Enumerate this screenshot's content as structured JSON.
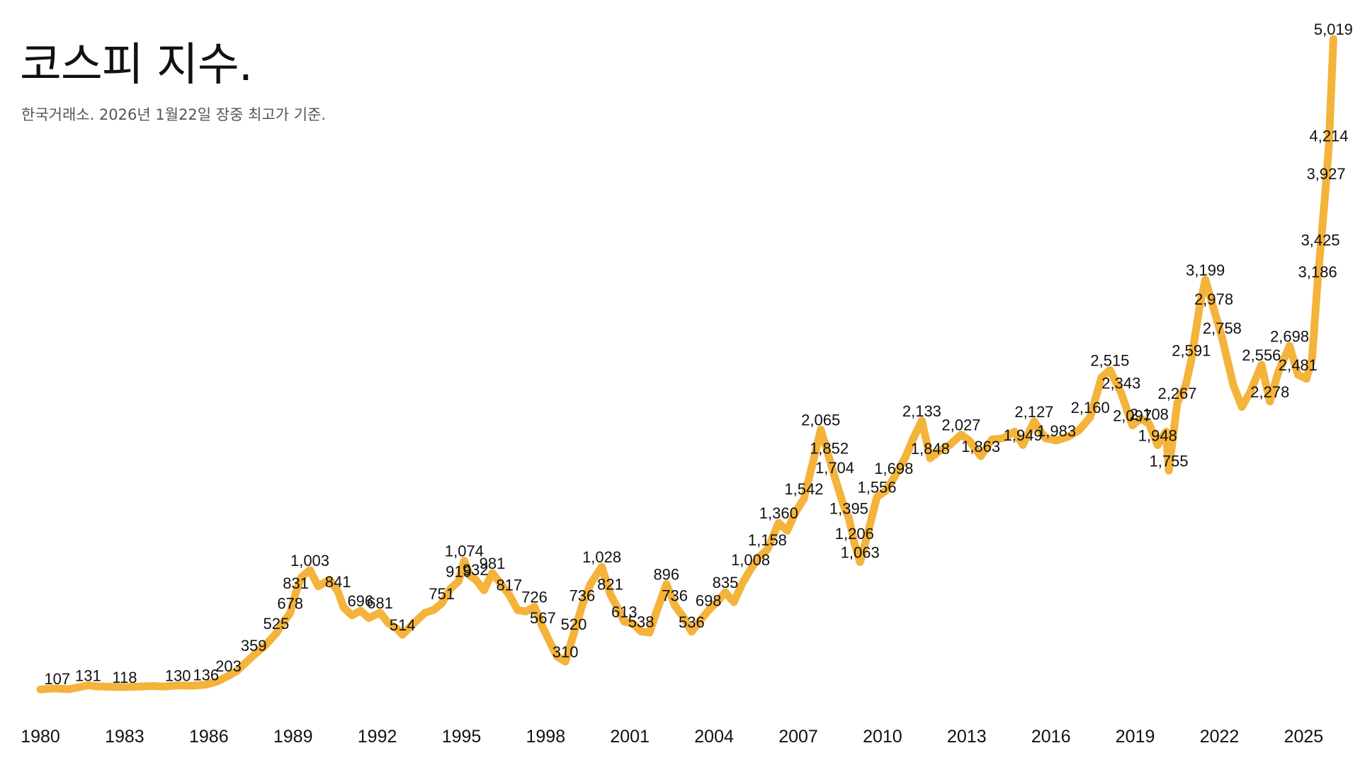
{
  "header": {
    "title": "코스피 지수.",
    "subtitle": "한국거래소. 2026년 1월22일 장중 최고가 기준."
  },
  "colors": {
    "line": "#F4B33A",
    "text": "#111111",
    "subtitle": "#555555"
  },
  "chart_data": {
    "type": "line",
    "title": "코스피 지수.",
    "subtitle": "한국거래소. 2026년 1월22일 장중 최고가 기준.",
    "xlabel": "",
    "ylabel": "",
    "xlim": [
      1980,
      2026
    ],
    "ylim": [
      0,
      5100
    ],
    "grid": false,
    "x_ticks": [
      1980,
      1983,
      1986,
      1989,
      1992,
      1995,
      1998,
      2001,
      2004,
      2007,
      2010,
      2013,
      2016,
      2019,
      2022,
      2025
    ],
    "series": [
      {
        "points": [
          [
            1980.0,
            100
          ],
          [
            1980.3,
            105
          ],
          [
            1980.6,
            107
          ],
          [
            1981.0,
            102
          ],
          [
            1981.4,
            118
          ],
          [
            1981.7,
            131
          ],
          [
            1982.0,
            124
          ],
          [
            1982.5,
            120
          ],
          [
            1983.0,
            118
          ],
          [
            1983.5,
            122
          ],
          [
            1984.0,
            126
          ],
          [
            1984.4,
            122
          ],
          [
            1984.9,
            130
          ],
          [
            1985.4,
            128
          ],
          [
            1985.9,
            136
          ],
          [
            1986.3,
            160
          ],
          [
            1986.7,
            203
          ],
          [
            1987.0,
            240
          ],
          [
            1987.3,
            300
          ],
          [
            1987.6,
            359
          ],
          [
            1988.0,
            430
          ],
          [
            1988.4,
            525
          ],
          [
            1988.7,
            620
          ],
          [
            1988.9,
            678
          ],
          [
            1989.1,
            831
          ],
          [
            1989.3,
            950
          ],
          [
            1989.6,
            1003
          ],
          [
            1989.9,
            880
          ],
          [
            1990.3,
            930
          ],
          [
            1990.6,
            841
          ],
          [
            1990.8,
            720
          ],
          [
            1991.1,
            660
          ],
          [
            1991.4,
            696
          ],
          [
            1991.7,
            640
          ],
          [
            1992.1,
            681
          ],
          [
            1992.4,
            600
          ],
          [
            1992.7,
            560
          ],
          [
            1992.9,
            514
          ],
          [
            1993.3,
            600
          ],
          [
            1993.7,
            680
          ],
          [
            1994.0,
            700
          ],
          [
            1994.3,
            751
          ],
          [
            1994.6,
            860
          ],
          [
            1994.9,
            919
          ],
          [
            1995.1,
            1074
          ],
          [
            1995.3,
            960
          ],
          [
            1995.5,
            932
          ],
          [
            1995.8,
            850
          ],
          [
            1996.1,
            981
          ],
          [
            1996.4,
            900
          ],
          [
            1996.7,
            817
          ],
          [
            1997.0,
            700
          ],
          [
            1997.3,
            690
          ],
          [
            1997.6,
            726
          ],
          [
            1997.9,
            567
          ],
          [
            1998.1,
            480
          ],
          [
            1998.4,
            350
          ],
          [
            1998.7,
            310
          ],
          [
            1999.0,
            520
          ],
          [
            1999.3,
            736
          ],
          [
            1999.6,
            900
          ],
          [
            2000.0,
            1028
          ],
          [
            2000.3,
            821
          ],
          [
            2000.6,
            700
          ],
          [
            2000.8,
            613
          ],
          [
            2001.1,
            600
          ],
          [
            2001.4,
            538
          ],
          [
            2001.7,
            530
          ],
          [
            2002.0,
            720
          ],
          [
            2002.3,
            896
          ],
          [
            2002.6,
            736
          ],
          [
            2002.9,
            650
          ],
          [
            2003.2,
            536
          ],
          [
            2003.5,
            620
          ],
          [
            2003.8,
            698
          ],
          [
            2004.1,
            760
          ],
          [
            2004.4,
            835
          ],
          [
            2004.7,
            760
          ],
          [
            2005.0,
            900
          ],
          [
            2005.3,
            1008
          ],
          [
            2005.6,
            1100
          ],
          [
            2005.9,
            1158
          ],
          [
            2006.3,
            1360
          ],
          [
            2006.6,
            1300
          ],
          [
            2006.9,
            1440
          ],
          [
            2007.2,
            1542
          ],
          [
            2007.5,
            1800
          ],
          [
            2007.8,
            2065
          ],
          [
            2008.1,
            1852
          ],
          [
            2008.3,
            1704
          ],
          [
            2008.6,
            1500
          ],
          [
            2008.8,
            1395
          ],
          [
            2009.0,
            1206
          ],
          [
            2009.2,
            1063
          ],
          [
            2009.5,
            1300
          ],
          [
            2009.8,
            1556
          ],
          [
            2010.1,
            1600
          ],
          [
            2010.4,
            1698
          ],
          [
            2010.8,
            1850
          ],
          [
            2011.1,
            2000
          ],
          [
            2011.4,
            2133
          ],
          [
            2011.7,
            1848
          ],
          [
            2012.0,
            1900
          ],
          [
            2012.4,
            1950
          ],
          [
            2012.8,
            2027
          ],
          [
            2013.1,
            1980
          ],
          [
            2013.5,
            1863
          ],
          [
            2013.9,
            1990
          ],
          [
            2014.3,
            2000
          ],
          [
            2014.7,
            2050
          ],
          [
            2015.0,
            1949
          ],
          [
            2015.4,
            2127
          ],
          [
            2015.8,
            2000
          ],
          [
            2016.2,
            1983
          ],
          [
            2016.6,
            2010
          ],
          [
            2017.0,
            2060
          ],
          [
            2017.4,
            2160
          ],
          [
            2017.8,
            2460
          ],
          [
            2018.1,
            2515
          ],
          [
            2018.5,
            2343
          ],
          [
            2018.9,
            2097
          ],
          [
            2019.2,
            2150
          ],
          [
            2019.5,
            2108
          ],
          [
            2019.8,
            1948
          ],
          [
            2020.1,
            2050
          ],
          [
            2020.2,
            1755
          ],
          [
            2020.5,
            2267
          ],
          [
            2020.8,
            2400
          ],
          [
            2021.0,
            2591
          ],
          [
            2021.3,
            3000
          ],
          [
            2021.5,
            3199
          ],
          [
            2021.8,
            2978
          ],
          [
            2022.1,
            2758
          ],
          [
            2022.5,
            2400
          ],
          [
            2022.8,
            2236
          ],
          [
            2023.1,
            2350
          ],
          [
            2023.5,
            2556
          ],
          [
            2023.8,
            2278
          ],
          [
            2024.1,
            2500
          ],
          [
            2024.5,
            2698
          ],
          [
            2024.8,
            2481
          ],
          [
            2025.1,
            2450
          ],
          [
            2025.3,
            2600
          ],
          [
            2025.5,
            3186
          ],
          [
            2025.6,
            3425
          ],
          [
            2025.8,
            3927
          ],
          [
            2025.9,
            4214
          ],
          [
            2026.06,
            5019
          ]
        ]
      }
    ],
    "data_labels": [
      {
        "x": 1980.6,
        "y": 107,
        "text": "107"
      },
      {
        "x": 1981.7,
        "y": 131,
        "text": "131"
      },
      {
        "x": 1983.0,
        "y": 118,
        "text": "118"
      },
      {
        "x": 1984.9,
        "y": 130,
        "text": "130"
      },
      {
        "x": 1985.9,
        "y": 136,
        "text": "136"
      },
      {
        "x": 1986.7,
        "y": 203,
        "text": "203"
      },
      {
        "x": 1987.6,
        "y": 359,
        "text": "359"
      },
      {
        "x": 1988.4,
        "y": 525,
        "text": "525"
      },
      {
        "x": 1988.9,
        "y": 678,
        "text": "678"
      },
      {
        "x": 1989.1,
        "y": 831,
        "text": "831"
      },
      {
        "x": 1989.6,
        "y": 1003,
        "text": "1,003"
      },
      {
        "x": 1990.6,
        "y": 841,
        "text": "841"
      },
      {
        "x": 1991.4,
        "y": 696,
        "text": "696"
      },
      {
        "x": 1992.1,
        "y": 681,
        "text": "681"
      },
      {
        "x": 1992.9,
        "y": 514,
        "text": "514"
      },
      {
        "x": 1994.3,
        "y": 751,
        "text": "751"
      },
      {
        "x": 1994.9,
        "y": 919,
        "text": "919"
      },
      {
        "x": 1995.1,
        "y": 1074,
        "text": "1,074"
      },
      {
        "x": 1995.5,
        "y": 932,
        "text": "932"
      },
      {
        "x": 1996.1,
        "y": 981,
        "text": "981"
      },
      {
        "x": 1996.7,
        "y": 817,
        "text": "817"
      },
      {
        "x": 1997.6,
        "y": 726,
        "text": "726"
      },
      {
        "x": 1997.9,
        "y": 567,
        "text": "567"
      },
      {
        "x": 1998.7,
        "y": 310,
        "text": "310"
      },
      {
        "x": 1999.0,
        "y": 520,
        "text": "520"
      },
      {
        "x": 1999.3,
        "y": 736,
        "text": "736"
      },
      {
        "x": 2000.0,
        "y": 1028,
        "text": "1,028"
      },
      {
        "x": 2000.3,
        "y": 821,
        "text": "821"
      },
      {
        "x": 2000.8,
        "y": 613,
        "text": "613"
      },
      {
        "x": 2001.4,
        "y": 538,
        "text": "538"
      },
      {
        "x": 2002.3,
        "y": 896,
        "text": "896"
      },
      {
        "x": 2002.6,
        "y": 736,
        "text": "736"
      },
      {
        "x": 2003.2,
        "y": 536,
        "text": "536"
      },
      {
        "x": 2003.8,
        "y": 698,
        "text": "698"
      },
      {
        "x": 2004.4,
        "y": 835,
        "text": "835"
      },
      {
        "x": 2005.3,
        "y": 1008,
        "text": "1,008"
      },
      {
        "x": 2005.9,
        "y": 1158,
        "text": "1,158"
      },
      {
        "x": 2006.3,
        "y": 1360,
        "text": "1,360"
      },
      {
        "x": 2007.2,
        "y": 1542,
        "text": "1,542"
      },
      {
        "x": 2007.8,
        "y": 2065,
        "text": "2,065"
      },
      {
        "x": 2008.1,
        "y": 1852,
        "text": "1,852"
      },
      {
        "x": 2008.3,
        "y": 1704,
        "text": "1,704"
      },
      {
        "x": 2008.8,
        "y": 1395,
        "text": "1,395"
      },
      {
        "x": 2009.0,
        "y": 1206,
        "text": "1,206"
      },
      {
        "x": 2009.2,
        "y": 1063,
        "text": "1,063"
      },
      {
        "x": 2009.8,
        "y": 1556,
        "text": "1,556"
      },
      {
        "x": 2010.4,
        "y": 1698,
        "text": "1,698"
      },
      {
        "x": 2011.4,
        "y": 2133,
        "text": "2,133"
      },
      {
        "x": 2011.7,
        "y": 1848,
        "text": "1,848"
      },
      {
        "x": 2012.8,
        "y": 2027,
        "text": "2,027"
      },
      {
        "x": 2013.5,
        "y": 1863,
        "text": "1,863"
      },
      {
        "x": 2015.0,
        "y": 1949,
        "text": "1,949"
      },
      {
        "x": 2015.4,
        "y": 2127,
        "text": "2,127"
      },
      {
        "x": 2016.2,
        "y": 1983,
        "text": "1,983"
      },
      {
        "x": 2017.4,
        "y": 2160,
        "text": "2,160"
      },
      {
        "x": 2018.1,
        "y": 2515,
        "text": "2,515"
      },
      {
        "x": 2018.5,
        "y": 2343,
        "text": "2,343"
      },
      {
        "x": 2018.9,
        "y": 2097,
        "text": "2,097"
      },
      {
        "x": 2019.5,
        "y": 2108,
        "text": "2,108"
      },
      {
        "x": 2019.8,
        "y": 1948,
        "text": "1,948"
      },
      {
        "x": 2020.2,
        "y": 1755,
        "text": "1,755"
      },
      {
        "x": 2020.5,
        "y": 2267,
        "text": "2,267"
      },
      {
        "x": 2021.0,
        "y": 2591,
        "text": "2,591"
      },
      {
        "x": 2021.5,
        "y": 3199,
        "text": "3,199"
      },
      {
        "x": 2021.8,
        "y": 2978,
        "text": "2,978"
      },
      {
        "x": 2022.1,
        "y": 2758,
        "text": "2,758"
      },
      {
        "x": 2023.5,
        "y": 2556,
        "text": "2,556"
      },
      {
        "x": 2023.8,
        "y": 2278,
        "text": "2,278"
      },
      {
        "x": 2024.5,
        "y": 2698,
        "text": "2,698"
      },
      {
        "x": 2024.8,
        "y": 2481,
        "text": "2,481"
      },
      {
        "x": 2025.5,
        "y": 3186,
        "text": "3,186"
      },
      {
        "x": 2025.6,
        "y": 3425,
        "text": "3,425"
      },
      {
        "x": 2025.8,
        "y": 3927,
        "text": "3,927"
      },
      {
        "x": 2025.9,
        "y": 4214,
        "text": "4,214"
      },
      {
        "x": 2026.06,
        "y": 5019,
        "text": "5,019"
      }
    ]
  }
}
